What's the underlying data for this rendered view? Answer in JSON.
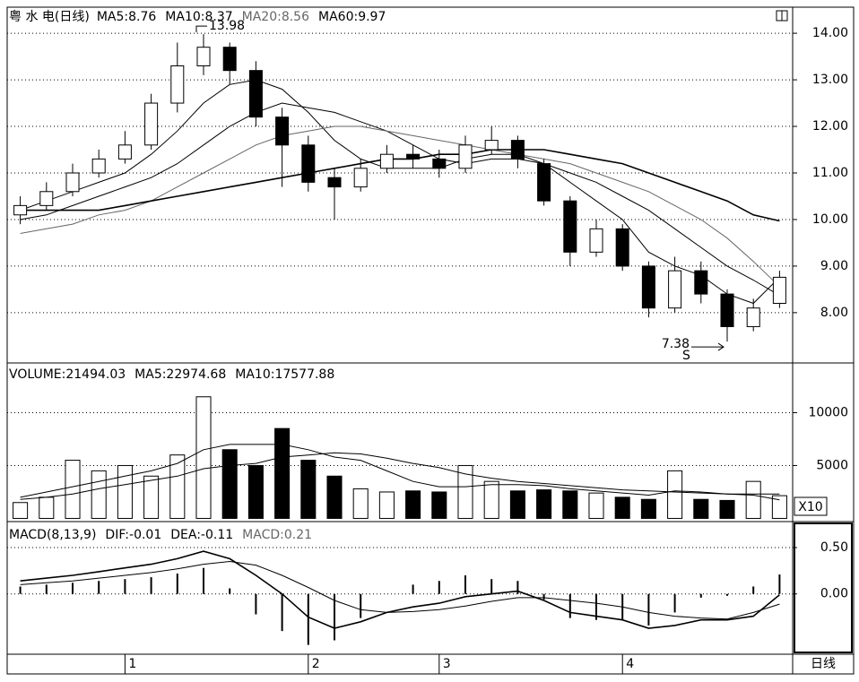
{
  "chart_data": [
    {
      "type": "candlestick",
      "title": "粤 水 电(日线)",
      "categories": [
        null,
        null,
        null,
        null,
        "1",
        null,
        null,
        null,
        null,
        null,
        null,
        "2",
        null,
        null,
        null,
        null,
        "3",
        null,
        null,
        null,
        null,
        null,
        null,
        "4",
        null,
        null,
        null,
        null,
        null,
        null
      ],
      "open": [
        10.1,
        10.3,
        10.6,
        11.0,
        11.3,
        11.6,
        12.5,
        13.3,
        13.7,
        13.2,
        12.2,
        11.6,
        10.9,
        10.7,
        11.1,
        11.4,
        11.3,
        11.1,
        11.5,
        11.7,
        11.2,
        10.4,
        9.3,
        9.8,
        9.0,
        8.1,
        8.9,
        8.4,
        7.7,
        8.2
      ],
      "high": [
        10.5,
        10.8,
        11.2,
        11.5,
        11.9,
        12.7,
        13.8,
        13.98,
        13.8,
        13.4,
        12.4,
        11.8,
        11.1,
        11.3,
        11.6,
        11.6,
        11.5,
        11.8,
        12.0,
        11.8,
        11.3,
        10.5,
        10.0,
        9.9,
        9.1,
        9.2,
        9.1,
        8.5,
        8.3,
        8.9
      ],
      "low": [
        9.9,
        10.2,
        10.5,
        10.9,
        11.2,
        11.5,
        12.3,
        13.1,
        12.9,
        12.0,
        10.7,
        10.6,
        10.0,
        10.6,
        11.0,
        11.1,
        10.9,
        11.0,
        11.4,
        11.1,
        10.3,
        9.0,
        9.2,
        8.9,
        7.9,
        8.0,
        8.2,
        7.38,
        7.6,
        8.1
      ],
      "close": [
        10.3,
        10.6,
        11.0,
        11.3,
        11.6,
        12.5,
        13.3,
        13.7,
        13.2,
        12.2,
        11.6,
        10.8,
        10.7,
        11.1,
        11.4,
        11.3,
        11.1,
        11.6,
        11.7,
        11.3,
        10.4,
        9.3,
        9.8,
        9.0,
        8.1,
        8.9,
        8.4,
        7.7,
        8.1,
        8.76
      ],
      "series": [
        {
          "name": "MA5:8.76",
          "color": "#000000",
          "values": [
            10.2,
            10.4,
            10.6,
            10.8,
            11.0,
            11.4,
            11.9,
            12.5,
            12.9,
            13.0,
            12.8,
            12.3,
            11.7,
            11.3,
            11.1,
            11.1,
            11.1,
            11.3,
            11.4,
            11.4,
            11.2,
            10.8,
            10.4,
            10.0,
            9.3,
            9.0,
            8.8,
            8.4,
            8.2,
            8.76
          ]
        },
        {
          "name": "MA10:8.37",
          "color": "#000000",
          "values": [
            10.0,
            10.1,
            10.3,
            10.5,
            10.7,
            10.9,
            11.2,
            11.6,
            12.0,
            12.3,
            12.5,
            12.4,
            12.3,
            12.1,
            11.9,
            11.6,
            11.3,
            11.2,
            11.3,
            11.3,
            11.2,
            11.0,
            10.8,
            10.5,
            10.2,
            9.8,
            9.4,
            9.0,
            8.7,
            8.37
          ]
        },
        {
          "name": "MA20:8.56",
          "color": "#666666",
          "values": [
            9.7,
            9.8,
            9.9,
            10.1,
            10.2,
            10.4,
            10.7,
            11.0,
            11.3,
            11.6,
            11.8,
            11.9,
            12.0,
            12.0,
            11.9,
            11.8,
            11.7,
            11.6,
            11.5,
            11.4,
            11.3,
            11.2,
            11.0,
            10.8,
            10.6,
            10.3,
            10.0,
            9.6,
            9.1,
            8.56
          ]
        },
        {
          "name": "MA60:9.97",
          "color": "#000000",
          "values": [
            10.2,
            10.2,
            10.2,
            10.2,
            10.3,
            10.4,
            10.5,
            10.6,
            10.7,
            10.8,
            10.9,
            11.0,
            11.1,
            11.2,
            11.3,
            11.3,
            11.4,
            11.4,
            11.5,
            11.5,
            11.5,
            11.4,
            11.3,
            11.2,
            11.0,
            10.8,
            10.6,
            10.4,
            10.1,
            9.97
          ]
        }
      ],
      "ylim": [
        6.92,
        14.56
      ],
      "yticks": [
        {
          "value": 8,
          "label": "8.00"
        },
        {
          "value": 9,
          "label": "9.00"
        },
        {
          "value": 10,
          "label": "10.00"
        },
        {
          "value": 11,
          "label": "11.00"
        },
        {
          "value": 12,
          "label": "12.00"
        },
        {
          "value": 13,
          "label": "13.00"
        },
        {
          "value": 14,
          "label": "14.00"
        }
      ],
      "grid": true,
      "annotations": [
        {
          "text": "13.98",
          "value": 13.98
        },
        {
          "text": "7.38",
          "value": 7.38
        }
      ],
      "marker": "S",
      "period": "日线"
    },
    {
      "type": "volume",
      "series": [
        {
          "name": "VOLUME:21494.03",
          "color": "#000000",
          "values": [
            1500,
            2000,
            5500,
            4500,
            5000,
            4000,
            6000,
            11500,
            6500,
            5000,
            8500,
            5500,
            4000,
            2800,
            2500,
            2600,
            2500,
            5000,
            3500,
            2600,
            2700,
            2600,
            2400,
            2000,
            1800,
            4500,
            1800,
            1700,
            3500,
            2149.4
          ]
        },
        {
          "name": "MA5:22974.68",
          "color": "#000000",
          "values": [
            2000,
            2500,
            3000,
            3500,
            4000,
            4500,
            5200,
            6500,
            7000,
            7000,
            7000,
            6500,
            5800,
            5500,
            4500,
            3500,
            3000,
            3000,
            3200,
            3200,
            3100,
            2800,
            2600,
            2400,
            2200,
            2600,
            2500,
            2300,
            2300,
            2297.5
          ]
        },
        {
          "name": "MA10:17577.88",
          "color": "#000000",
          "values": [
            1800,
            2000,
            2300,
            2800,
            3200,
            3600,
            4000,
            4700,
            5000,
            5200,
            5800,
            6000,
            6200,
            6100,
            5700,
            5200,
            4800,
            4200,
            3800,
            3500,
            3300,
            3100,
            2900,
            2700,
            2600,
            2500,
            2400,
            2300,
            2200,
            1757.8
          ]
        }
      ],
      "ylim": [
        -300,
        14700
      ],
      "yticks": [
        5000,
        10000
      ],
      "grid": true,
      "unit": "X10"
    },
    {
      "type": "macd",
      "series": [
        {
          "name": "MACD(8,13,9)",
          "color": "#000000",
          "values": []
        },
        {
          "name": "DIF:-0.01",
          "color": "#000000",
          "values": [
            0.14,
            0.17,
            0.2,
            0.24,
            0.28,
            0.32,
            0.38,
            0.46,
            0.38,
            0.2,
            0,
            -0.25,
            -0.37,
            -0.3,
            -0.2,
            -0.14,
            -0.1,
            -0.03,
            0.0,
            0.03,
            -0.07,
            -0.2,
            -0.24,
            -0.28,
            -0.37,
            -0.34,
            -0.28,
            -0.28,
            -0.24,
            -0.01
          ]
        },
        {
          "name": "DEA:-0.11",
          "color": "#000000",
          "values": [
            0.1,
            0.12,
            0.14,
            0.17,
            0.2,
            0.23,
            0.27,
            0.32,
            0.35,
            0.31,
            0.2,
            0.07,
            -0.07,
            -0.17,
            -0.2,
            -0.19,
            -0.17,
            -0.13,
            -0.08,
            -0.04,
            -0.04,
            -0.07,
            -0.1,
            -0.14,
            -0.2,
            -0.24,
            -0.26,
            -0.27,
            -0.2,
            -0.11
          ]
        },
        {
          "name": "MACD:0.21",
          "color": "#666666",
          "values": [
            0.08,
            0.1,
            0.12,
            0.14,
            0.16,
            0.18,
            0.22,
            0.28,
            0.06,
            -0.22,
            -0.4,
            -0.55,
            -0.5,
            -0.26,
            0,
            0.1,
            0.14,
            0.2,
            0.16,
            0.14,
            -0.06,
            -0.26,
            -0.28,
            -0.28,
            -0.34,
            -0.2,
            -0.04,
            -0.02,
            0.08,
            0.21
          ]
        }
      ],
      "ylim": [
        -0.65,
        0.78
      ],
      "yticks": [
        {
          "value": 0,
          "label": "0.00"
        },
        {
          "value": 0.5,
          "label": "0.50"
        }
      ],
      "grid": true
    }
  ]
}
